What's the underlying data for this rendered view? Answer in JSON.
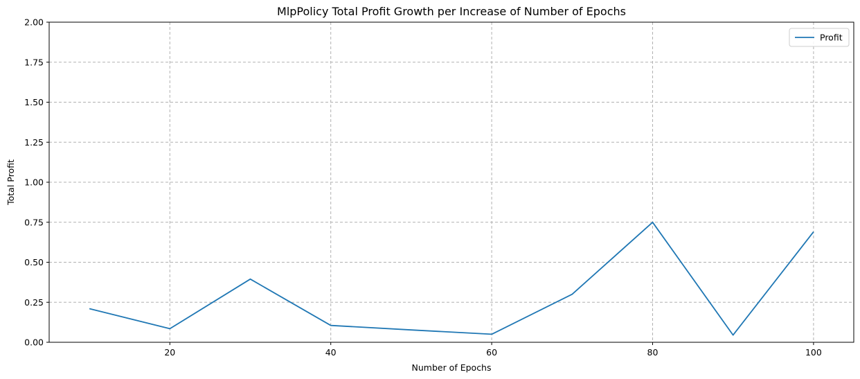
{
  "chart_data": {
    "type": "line",
    "title": "MlpPolicy Total Profit Growth per Increase of Number of Epochs",
    "xlabel": "Number of Epochs",
    "ylabel": "Total Profit",
    "xlim": [
      5,
      105
    ],
    "ylim": [
      0,
      2
    ],
    "x_ticks": [
      20,
      40,
      60,
      80,
      100
    ],
    "y_ticks": [
      0.0,
      0.25,
      0.5,
      0.75,
      1.0,
      1.25,
      1.5,
      1.75,
      2.0
    ],
    "x_tick_labels": [
      "20",
      "40",
      "60",
      "80",
      "100"
    ],
    "y_tick_labels": [
      "0.00",
      "0.25",
      "0.50",
      "0.75",
      "1.00",
      "1.25",
      "1.50",
      "1.75",
      "2.00"
    ],
    "grid": true,
    "legend_position": "top-right",
    "series": [
      {
        "name": "Profit",
        "color": "#1f77b4",
        "x": [
          10,
          20,
          30,
          40,
          50,
          60,
          70,
          80,
          90,
          100
        ],
        "y": [
          0.21,
          0.085,
          0.395,
          0.105,
          0.077,
          0.05,
          0.3,
          0.75,
          0.045,
          0.69
        ]
      }
    ]
  }
}
